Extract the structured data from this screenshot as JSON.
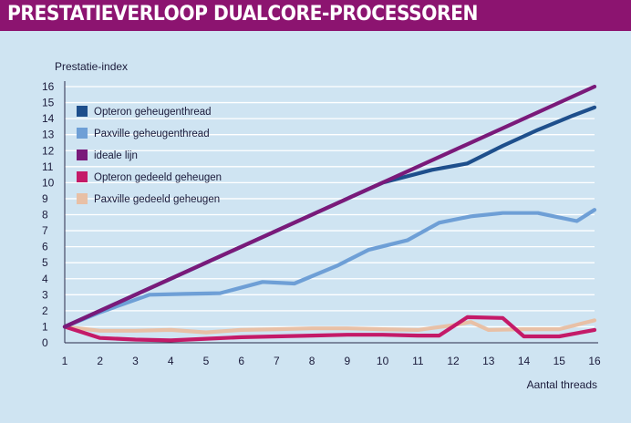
{
  "chart_data": {
    "type": "line",
    "title": "PRESTATIEVERLOOP DUALCORE-PROCESSOREN",
    "ylabel": "Prestatie-index",
    "xlabel": "Aantal threads",
    "x": [
      1,
      2,
      3,
      4,
      5,
      6,
      7,
      8,
      9,
      10,
      11,
      12,
      13,
      14,
      15,
      16
    ],
    "xlim": [
      1,
      16
    ],
    "ylim": [
      0,
      16
    ],
    "yticks": [
      0,
      1,
      2,
      3,
      4,
      5,
      6,
      7,
      8,
      9,
      10,
      11,
      12,
      13,
      14,
      15,
      16
    ],
    "grid": true,
    "legend_position": "top-left",
    "series": [
      {
        "name": "Opteron geheugenthread",
        "color": "#1e4f8c",
        "points": [
          [
            1,
            1
          ],
          [
            2,
            2
          ],
          [
            3,
            3
          ],
          [
            4,
            4
          ],
          [
            5,
            5
          ],
          [
            6,
            6
          ],
          [
            7,
            7
          ],
          [
            8,
            8
          ],
          [
            9,
            9
          ],
          [
            10,
            10
          ],
          [
            11.4,
            10.8
          ],
          [
            12.4,
            11.2
          ],
          [
            13.4,
            12.3
          ],
          [
            14.4,
            13.3
          ],
          [
            15.4,
            14.2
          ],
          [
            16,
            14.7
          ]
        ]
      },
      {
        "name": "Paxville geheugenthread",
        "color": "#6e9fd6",
        "points": [
          [
            1,
            1
          ],
          [
            2,
            1.9
          ],
          [
            3.4,
            3.0
          ],
          [
            4.4,
            3.05
          ],
          [
            5.4,
            3.1
          ],
          [
            6.6,
            3.8
          ],
          [
            7.5,
            3.7
          ],
          [
            8.7,
            4.8
          ],
          [
            9.6,
            5.8
          ],
          [
            10.7,
            6.4
          ],
          [
            11.6,
            7.5
          ],
          [
            12.5,
            7.9
          ],
          [
            13.4,
            8.1
          ],
          [
            14.4,
            8.1
          ],
          [
            15.5,
            7.6
          ],
          [
            16,
            8.3
          ]
        ]
      },
      {
        "name": "ideale lijn",
        "color": "#7a1a7a",
        "points": [
          [
            1,
            1
          ],
          [
            16,
            16
          ]
        ]
      },
      {
        "name": "Opteron gedeeld geheugen",
        "color": "#c41a68",
        "points": [
          [
            1,
            1
          ],
          [
            2,
            0.3
          ],
          [
            3,
            0.2
          ],
          [
            4,
            0.15
          ],
          [
            5,
            0.25
          ],
          [
            6,
            0.35
          ],
          [
            7,
            0.4
          ],
          [
            8,
            0.45
          ],
          [
            9,
            0.5
          ],
          [
            10,
            0.5
          ],
          [
            11,
            0.45
          ],
          [
            11.6,
            0.45
          ],
          [
            12.4,
            1.6
          ],
          [
            13.4,
            1.55
          ],
          [
            14,
            0.4
          ],
          [
            15,
            0.4
          ],
          [
            16,
            0.8
          ]
        ]
      },
      {
        "name": "Paxville gedeeld geheugen",
        "color": "#e8c0a6",
        "points": [
          [
            1,
            1
          ],
          [
            2,
            0.75
          ],
          [
            3,
            0.75
          ],
          [
            4,
            0.8
          ],
          [
            5,
            0.65
          ],
          [
            6,
            0.8
          ],
          [
            7,
            0.85
          ],
          [
            8,
            0.9
          ],
          [
            9,
            0.9
          ],
          [
            10,
            0.85
          ],
          [
            11,
            0.8
          ],
          [
            12,
            1.1
          ],
          [
            12.5,
            1.3
          ],
          [
            13,
            0.8
          ],
          [
            14,
            0.85
          ],
          [
            15,
            0.85
          ],
          [
            16,
            1.4
          ]
        ]
      }
    ]
  }
}
